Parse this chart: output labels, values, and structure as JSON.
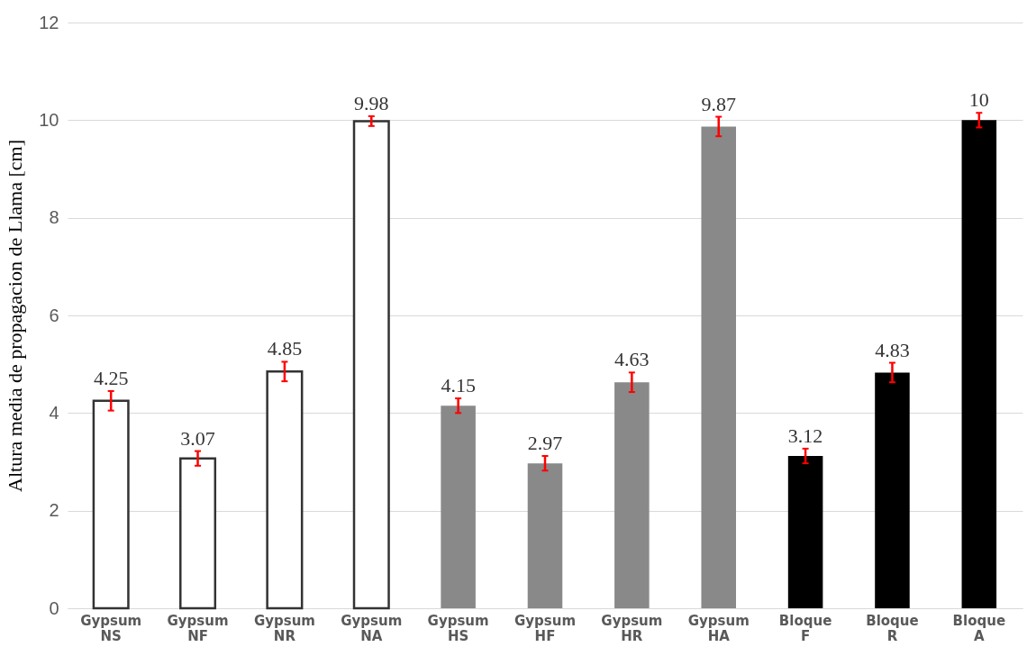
{
  "chart_data": {
    "type": "bar",
    "ylabel": "Altura media de propagacion de Llama [cm]",
    "categories": [
      "Gypsum NS",
      "Gypsum NF",
      "Gypsum NR",
      "Gypsum NA",
      "Gypsum HS",
      "Gypsum HF",
      "Gypsum HR",
      "Gypsum HA",
      "Bloque F",
      "Bloque R",
      "Bloque A"
    ],
    "values": [
      4.25,
      3.07,
      4.85,
      9.98,
      4.15,
      2.97,
      4.63,
      9.87,
      3.12,
      4.83,
      10
    ],
    "colors": [
      "#ffffff",
      "#ffffff",
      "#ffffff",
      "#ffffff",
      "#898989",
      "#898989",
      "#898989",
      "#898989",
      "#000000",
      "#000000",
      "#000000"
    ],
    "errors": [
      0.2,
      0.15,
      0.2,
      0.1,
      0.15,
      0.15,
      0.2,
      0.2,
      0.15,
      0.2,
      0.15
    ],
    "ylim": [
      0,
      12
    ],
    "yticks": [
      0,
      2,
      4,
      6,
      8,
      10,
      12
    ],
    "grid": "y",
    "data_labels": true
  }
}
